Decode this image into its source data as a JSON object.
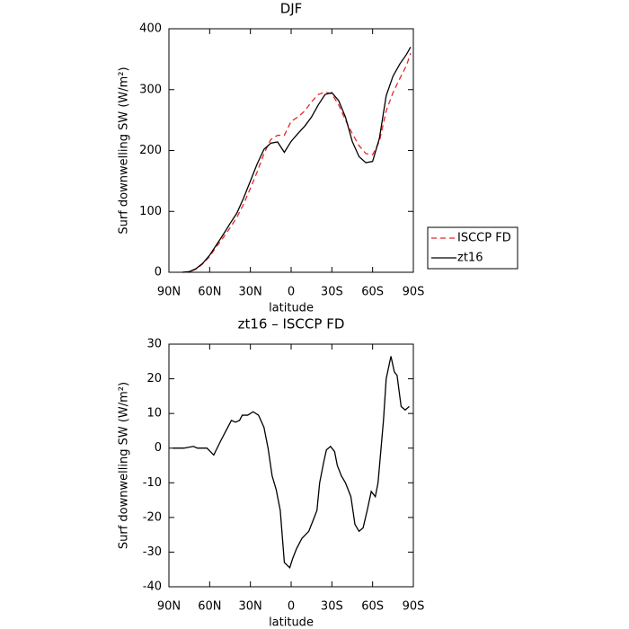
{
  "chart_data": [
    {
      "type": "line",
      "title": "DJF",
      "x_label": "latitude",
      "y_label": "Surf downwelling SW (W/m²)",
      "xlim": [
        90,
        -90
      ],
      "xticks": [
        {
          "value": 90,
          "label": "90N"
        },
        {
          "value": 60,
          "label": "60N"
        },
        {
          "value": 30,
          "label": "30N"
        },
        0,
        {
          "value": -30,
          "label": "30S"
        },
        {
          "value": -60,
          "label": "60S"
        },
        {
          "value": -90,
          "label": "90S"
        }
      ],
      "ylim": [
        0,
        400
      ],
      "yticks": [
        0,
        100,
        200,
        300,
        400
      ],
      "legend": "outside-right",
      "x": [
        80,
        75,
        70,
        65,
        60,
        55,
        50,
        45,
        40,
        35,
        30,
        25,
        20,
        15,
        10,
        5,
        0,
        -5,
        -10,
        -15,
        -20,
        -25,
        -30,
        -35,
        -40,
        -45,
        -50,
        -55,
        -60,
        -65,
        -70,
        -75,
        -80,
        -85,
        -88
      ],
      "series": [
        {
          "name": "ISCCP FD",
          "color": "#e8262a",
          "line_style": "dashed",
          "values": [
            0,
            1,
            5,
            14,
            26,
            42,
            57,
            73,
            90,
            112,
            138,
            165,
            195,
            218,
            225,
            225,
            248,
            255,
            265,
            280,
            292,
            296,
            293,
            275,
            250,
            228,
            208,
            195,
            193,
            215,
            265,
            295,
            318,
            340,
            360
          ]
        },
        {
          "name": "zt16",
          "color": "#000000",
          "line_style": "solid",
          "values": [
            0,
            1,
            6,
            15,
            28,
            45,
            62,
            80,
            97,
            122,
            150,
            178,
            202,
            212,
            214,
            197,
            215,
            228,
            240,
            255,
            275,
            292,
            295,
            282,
            255,
            215,
            190,
            180,
            182,
            220,
            290,
            322,
            342,
            358,
            370
          ]
        }
      ]
    },
    {
      "type": "line",
      "title": "zt16 – ISCCP FD",
      "x_label": "latitude",
      "y_label": "Surf downwelling SW (W/m²)",
      "xlim": [
        90,
        -90
      ],
      "xticks": [
        {
          "value": 90,
          "label": "90N"
        },
        {
          "value": 60,
          "label": "60N"
        },
        {
          "value": 30,
          "label": "30N"
        },
        0,
        {
          "value": -30,
          "label": "30S"
        },
        {
          "value": -60,
          "label": "60S"
        },
        {
          "value": -90,
          "label": "90S"
        }
      ],
      "ylim": [
        -40,
        30
      ],
      "yticks": [
        -40,
        -30,
        -20,
        -10,
        0,
        10,
        20,
        30
      ],
      "color": "#000000",
      "x": [
        87,
        79,
        72,
        69,
        62,
        57,
        52,
        48,
        44,
        41,
        38,
        36,
        32,
        28,
        24,
        20,
        17,
        14,
        11,
        8,
        5,
        1,
        -1,
        -4,
        -8,
        -13,
        -16,
        -19,
        -21,
        -24,
        -26,
        -29,
        -32,
        -34,
        -37,
        -40,
        -44,
        -47,
        -50,
        -53,
        -56,
        -59,
        -62,
        -64,
        -68,
        -70,
        -73.5,
        -76,
        -78,
        -81,
        -84,
        -87
      ],
      "values": [
        0,
        0,
        0.5,
        0,
        0,
        -2,
        2,
        5,
        8,
        7.5,
        8,
        9.5,
        9.5,
        10.5,
        9.5,
        6,
        0,
        -8,
        -12,
        -18,
        -33,
        -34.5,
        -32,
        -29,
        -26,
        -24,
        -21,
        -18,
        -10,
        -4,
        -0.5,
        0.5,
        -1,
        -5,
        -8,
        -10,
        -14,
        -22,
        -24,
        -23,
        -18,
        -12.5,
        -14,
        -10,
        8,
        20,
        26.5,
        22,
        21,
        12,
        11,
        12
      ]
    }
  ]
}
